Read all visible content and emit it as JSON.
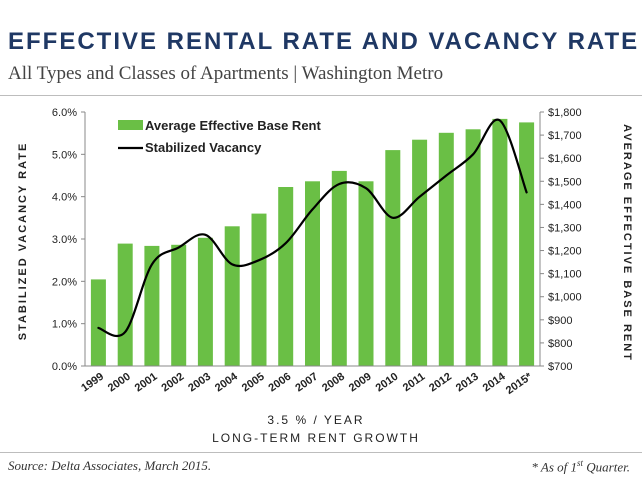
{
  "header": {
    "title": "EFFECTIVE RENTAL RATE AND VACANCY RATE",
    "subtitle": "All Types and Classes of Apartments | Washington Metro"
  },
  "footer": {
    "source": "Source: Delta Associates, March 2015.",
    "note_prefix": "* As of 1",
    "note_sup": "st",
    "note_suffix": " Quarter."
  },
  "colors": {
    "bar": "#6abf45",
    "line": "#000000",
    "title": "#1f3864"
  },
  "chart_data": {
    "type": "bar",
    "categories": [
      "1999",
      "2000",
      "2001",
      "2002",
      "2003",
      "2004",
      "2005",
      "2006",
      "2007",
      "2008",
      "2009",
      "2010",
      "2011",
      "2012",
      "2013",
      "2014",
      "2015*"
    ],
    "series": [
      {
        "name": "Average Effective Base Rent",
        "type": "bar",
        "axis": "right",
        "values": [
          1075,
          1230,
          1220,
          1225,
          1255,
          1305,
          1360,
          1475,
          1500,
          1545,
          1500,
          1635,
          1680,
          1710,
          1725,
          1770,
          1755
        ]
      },
      {
        "name": "Stabilized Vacancy",
        "type": "line",
        "axis": "left",
        "values": [
          0.9,
          0.8,
          2.4,
          2.8,
          3.1,
          2.4,
          2.5,
          2.9,
          3.7,
          4.3,
          4.2,
          3.5,
          4.0,
          4.5,
          5.0,
          5.8,
          4.1
        ]
      }
    ],
    "y_left": {
      "label": "STABILIZED VACANCY RATE",
      "min": 0,
      "max": 6,
      "step": 1,
      "ticks": [
        "0.0%",
        "1.0%",
        "2.0%",
        "3.0%",
        "4.0%",
        "5.0%",
        "6.0%"
      ]
    },
    "y_right": {
      "label": "AVERAGE EFFECTIVE BASE RENT",
      "min": 700,
      "max": 1800,
      "step": 100,
      "ticks": [
        "$700",
        "$800",
        "$900",
        "$1,000",
        "$1,100",
        "$1,200",
        "$1,300",
        "$1,400",
        "$1,500",
        "$1,600",
        "$1,700",
        "$1,800"
      ]
    },
    "annotation": {
      "line1": "3.5 % / YEAR",
      "line2": "LONG-TERM RENT GROWTH"
    },
    "legend_position": "top-left",
    "grid": false
  }
}
